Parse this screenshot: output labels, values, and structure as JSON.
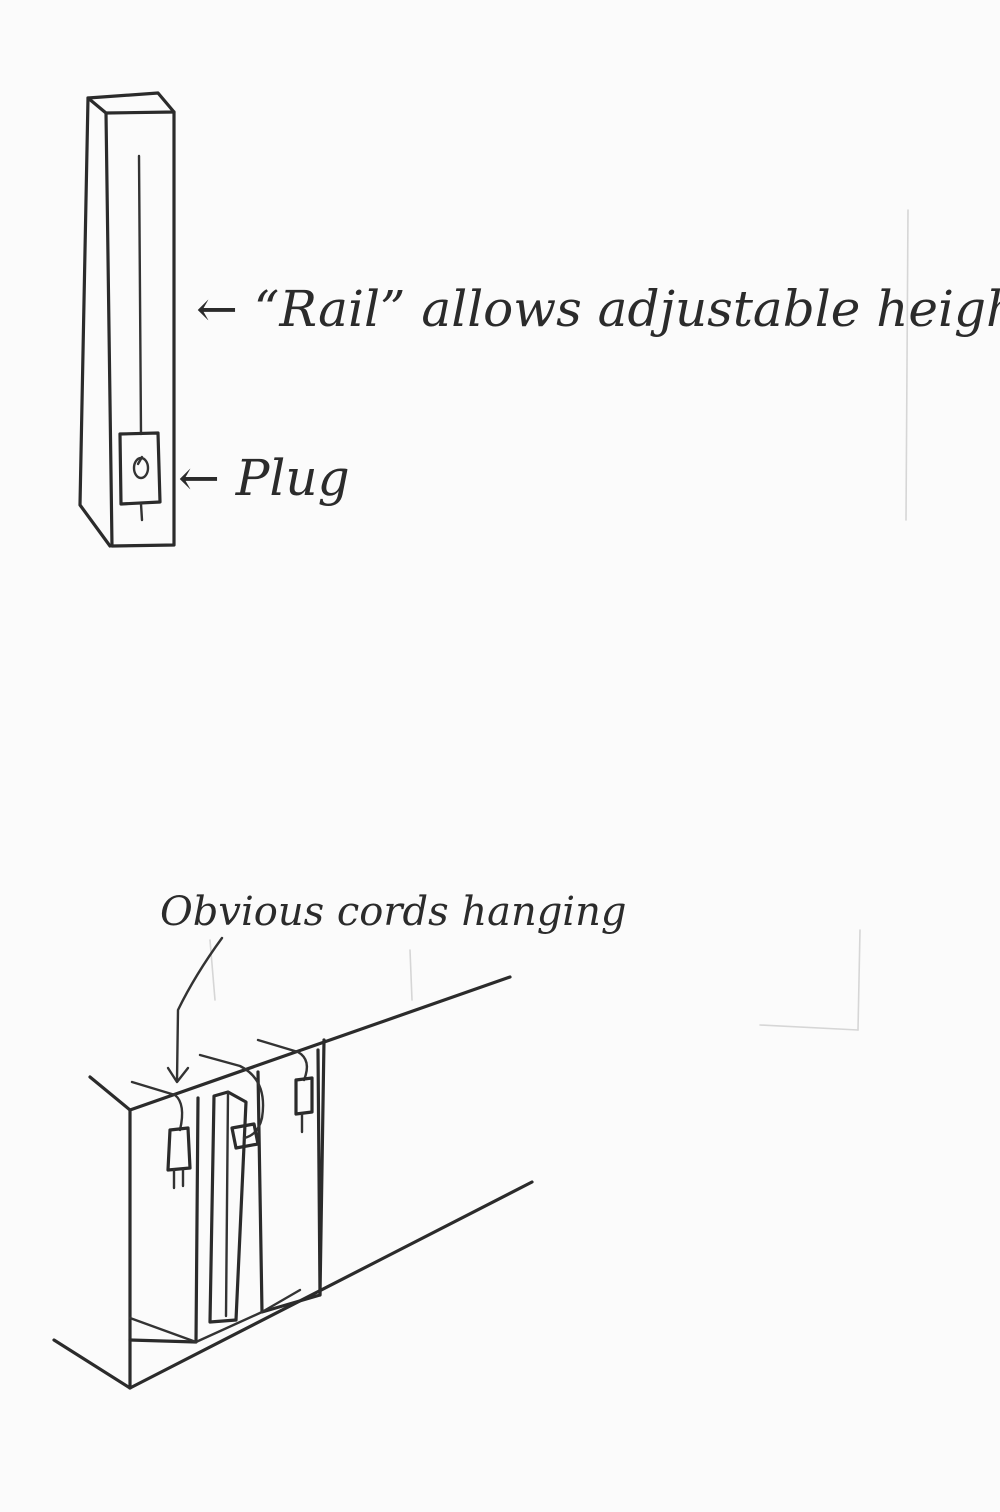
{
  "annotations": {
    "rail": "← “Rail” allows adjustable height",
    "plug": "← Plug",
    "cords": "Obvious cords hanging"
  },
  "colors": {
    "paper": "#fbfbfb",
    "ink": "#2b2b2b"
  }
}
